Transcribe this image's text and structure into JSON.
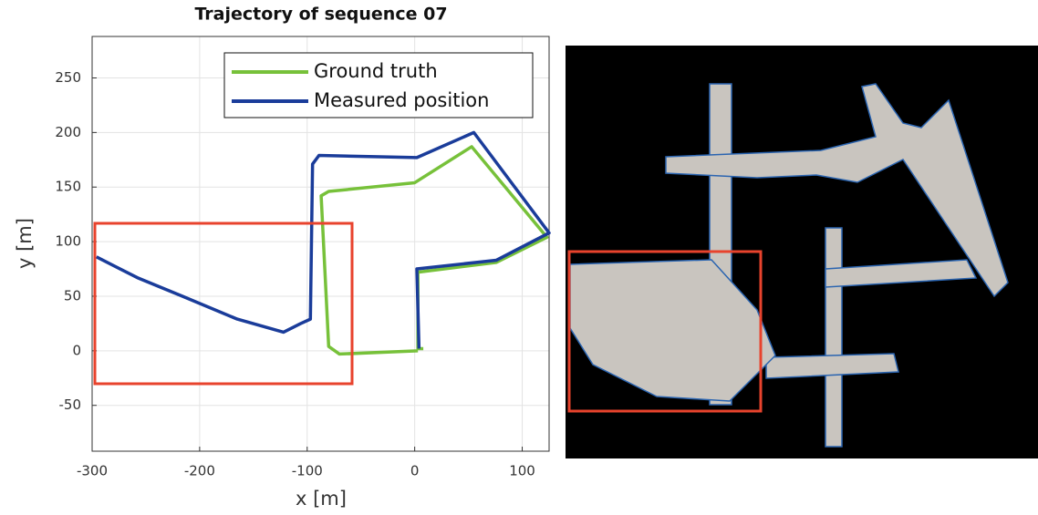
{
  "chart_data": {
    "type": "line",
    "title": "Trajectory of sequence 07",
    "x_label": "x [m]",
    "y_label": "y [m]",
    "xlim": [
      -300,
      125
    ],
    "ylim": [
      -92,
      288
    ],
    "xticks": [
      -300,
      -200,
      -100,
      0,
      100
    ],
    "yticks": [
      -50,
      0,
      50,
      100,
      150,
      200,
      250
    ],
    "grid": true,
    "legend": "upper right",
    "series": [
      {
        "name": "Ground truth",
        "color": "#77c13a",
        "x": [
          8,
          3,
          3,
          76,
          123,
          53,
          0,
          -80,
          -87,
          -80,
          -70,
          3
        ],
        "values": [
          2,
          2,
          72,
          81,
          104,
          187,
          154,
          146,
          142,
          4,
          -3,
          0
        ]
      },
      {
        "name": "Measured position",
        "color": "#1a3c9a",
        "x": [
          4,
          2,
          76,
          125,
          55,
          2,
          -89,
          -95,
          -97,
          -106,
          -122,
          -165,
          -216,
          -258,
          -296
        ],
        "values": [
          2,
          75,
          83,
          108,
          200,
          177,
          179,
          171,
          29,
          25,
          17,
          29,
          50,
          67,
          86
        ]
      }
    ]
  }
}
